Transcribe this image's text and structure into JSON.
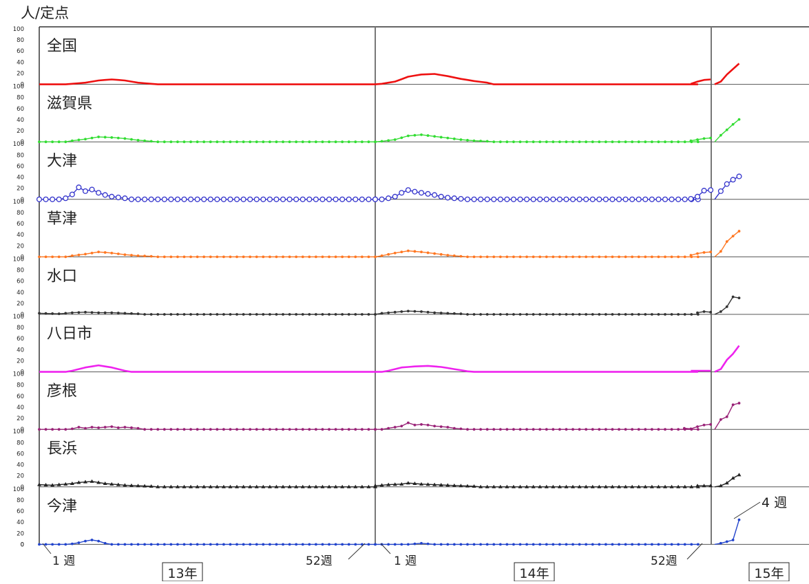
{
  "chart_data": {
    "type": "line",
    "ylabel": "人/定点",
    "y_tick_labels": [
      "100",
      "80",
      "60",
      "40",
      "20",
      "0"
    ],
    "ylim": [
      0,
      100
    ],
    "grid": false,
    "years": [
      "13年",
      "14年",
      "15年"
    ],
    "week_labels": {
      "y13_start": "1 週",
      "y13_end": "52週",
      "y14_start": "1 週",
      "y14_end": "52週"
    },
    "annotation": "4 週",
    "panels": [
      {
        "name": "全国",
        "color": "#ee1111",
        "marker": "none",
        "y13": [
          [
            6,
            1
          ],
          [
            8,
            3
          ],
          [
            10,
            7
          ],
          [
            12,
            9
          ],
          [
            14,
            7
          ],
          [
            16,
            3
          ],
          [
            18,
            1
          ]
        ],
        "y14": [
          [
            2,
            1
          ],
          [
            4,
            5
          ],
          [
            6,
            14
          ],
          [
            8,
            18
          ],
          [
            10,
            19
          ],
          [
            12,
            15
          ],
          [
            14,
            10
          ],
          [
            16,
            6
          ],
          [
            18,
            3
          ]
        ],
        "y14_tail": [
          [
            51,
            1
          ],
          [
            52,
            5
          ],
          [
            53,
            8
          ],
          [
            54,
            9
          ]
        ],
        "y15": [
          [
            1,
            5
          ],
          [
            2,
            18
          ],
          [
            3,
            28
          ],
          [
            4,
            38
          ]
        ]
      },
      {
        "name": "滋賀県",
        "color": "#33dd33",
        "marker": "dot",
        "y13": [
          [
            6,
            2
          ],
          [
            8,
            5
          ],
          [
            10,
            9
          ],
          [
            12,
            8
          ],
          [
            14,
            6
          ],
          [
            16,
            3
          ],
          [
            18,
            1
          ]
        ],
        "y14": [
          [
            2,
            1
          ],
          [
            4,
            4
          ],
          [
            6,
            11
          ],
          [
            8,
            13
          ],
          [
            10,
            10
          ],
          [
            12,
            7
          ],
          [
            14,
            4
          ],
          [
            16,
            2
          ],
          [
            18,
            1
          ]
        ],
        "y14_tail": [
          [
            51,
            2
          ],
          [
            52,
            4
          ],
          [
            53,
            6
          ],
          [
            54,
            7
          ]
        ],
        "y15": [
          [
            1,
            12
          ],
          [
            2,
            22
          ],
          [
            3,
            32
          ],
          [
            4,
            41
          ]
        ]
      },
      {
        "name": "大津",
        "color": "#3333cc",
        "marker": "circle",
        "y13": [
          [
            5,
            2
          ],
          [
            6,
            9
          ],
          [
            7,
            22
          ],
          [
            8,
            15
          ],
          [
            9,
            18
          ],
          [
            10,
            12
          ],
          [
            11,
            8
          ],
          [
            12,
            5
          ],
          [
            14,
            2
          ]
        ],
        "y14": [
          [
            3,
            2
          ],
          [
            4,
            5
          ],
          [
            5,
            12
          ],
          [
            6,
            17
          ],
          [
            7,
            14
          ],
          [
            8,
            12
          ],
          [
            9,
            10
          ],
          [
            10,
            8
          ],
          [
            11,
            5
          ],
          [
            12,
            3
          ],
          [
            14,
            1
          ]
        ],
        "y14_tail": [
          [
            51,
            1
          ],
          [
            52,
            5
          ],
          [
            53,
            16
          ],
          [
            54,
            17
          ]
        ],
        "y15": [
          [
            1,
            15
          ],
          [
            2,
            28
          ],
          [
            3,
            36
          ],
          [
            4,
            42
          ]
        ]
      },
      {
        "name": "草津",
        "color": "#ff7722",
        "marker": "dot",
        "y13": [
          [
            6,
            2
          ],
          [
            8,
            5
          ],
          [
            10,
            9
          ],
          [
            12,
            7
          ],
          [
            14,
            4
          ],
          [
            16,
            2
          ],
          [
            18,
            1
          ]
        ],
        "y14": [
          [
            2,
            2
          ],
          [
            4,
            7
          ],
          [
            6,
            11
          ],
          [
            8,
            9
          ],
          [
            10,
            6
          ],
          [
            12,
            3
          ],
          [
            14,
            1
          ]
        ],
        "y14_tail": [
          [
            51,
            3
          ],
          [
            52,
            6
          ],
          [
            53,
            8
          ],
          [
            54,
            9
          ]
        ],
        "y15": [
          [
            1,
            10
          ],
          [
            2,
            28
          ],
          [
            3,
            38
          ],
          [
            4,
            47
          ]
        ]
      },
      {
        "name": "水口",
        "color": "#333333",
        "marker": "dot",
        "y13": [
          [
            1,
            2
          ],
          [
            4,
            1
          ],
          [
            6,
            3
          ],
          [
            8,
            4
          ],
          [
            10,
            3
          ],
          [
            12,
            3
          ],
          [
            14,
            2
          ],
          [
            16,
            1
          ]
        ],
        "y14": [
          [
            2,
            2
          ],
          [
            4,
            4
          ],
          [
            6,
            6
          ],
          [
            8,
            5
          ],
          [
            10,
            3
          ],
          [
            12,
            2
          ],
          [
            14,
            1
          ]
        ],
        "y14_tail": [
          [
            52,
            3
          ],
          [
            53,
            5
          ],
          [
            54,
            4
          ]
        ],
        "y15": [
          [
            1,
            5
          ],
          [
            2,
            14
          ],
          [
            3,
            32
          ],
          [
            4,
            30
          ]
        ]
      },
      {
        "name": "八日市",
        "color": "#ee22ee",
        "marker": "none",
        "y13": [
          [
            6,
            2
          ],
          [
            8,
            8
          ],
          [
            10,
            12
          ],
          [
            12,
            8
          ],
          [
            14,
            2
          ],
          [
            15,
            0
          ]
        ],
        "y14": [
          [
            3,
            2
          ],
          [
            5,
            8
          ],
          [
            7,
            10
          ],
          [
            9,
            11
          ],
          [
            11,
            9
          ],
          [
            13,
            5
          ],
          [
            15,
            1
          ]
        ],
        "y14_tail": [
          [
            51,
            2
          ],
          [
            52,
            2
          ],
          [
            53,
            2
          ],
          [
            54,
            2
          ]
        ],
        "y15": [
          [
            1,
            5
          ],
          [
            2,
            22
          ],
          [
            3,
            33
          ],
          [
            4,
            48
          ]
        ]
      },
      {
        "name": "彦根",
        "color": "#992277",
        "marker": "dot",
        "y13": [
          [
            6,
            1
          ],
          [
            7,
            4
          ],
          [
            8,
            2
          ],
          [
            9,
            4
          ],
          [
            10,
            3
          ],
          [
            11,
            4
          ],
          [
            12,
            5
          ],
          [
            13,
            3
          ],
          [
            14,
            4
          ],
          [
            15,
            3
          ],
          [
            16,
            2
          ]
        ],
        "y14": [
          [
            3,
            2
          ],
          [
            5,
            6
          ],
          [
            6,
            12
          ],
          [
            7,
            8
          ],
          [
            8,
            9
          ],
          [
            9,
            8
          ],
          [
            10,
            6
          ],
          [
            11,
            5
          ],
          [
            12,
            4
          ],
          [
            13,
            2
          ],
          [
            14,
            1
          ]
        ],
        "y14_tail": [
          [
            50,
            2
          ],
          [
            51,
            1
          ],
          [
            52,
            5
          ],
          [
            53,
            8
          ],
          [
            54,
            9
          ]
        ],
        "y15": [
          [
            1,
            18
          ],
          [
            2,
            23
          ],
          [
            3,
            45
          ],
          [
            4,
            48
          ]
        ]
      },
      {
        "name": "長浜",
        "color": "#222222",
        "marker": "triangle",
        "y13": [
          [
            1,
            4
          ],
          [
            3,
            3
          ],
          [
            5,
            5
          ],
          [
            6,
            6
          ],
          [
            7,
            8
          ],
          [
            8,
            9
          ],
          [
            9,
            10
          ],
          [
            10,
            8
          ],
          [
            11,
            6
          ],
          [
            12,
            5
          ],
          [
            14,
            3
          ],
          [
            16,
            2
          ],
          [
            18,
            1
          ]
        ],
        "y14": [
          [
            1,
            2
          ],
          [
            3,
            4
          ],
          [
            5,
            5
          ],
          [
            6,
            7
          ],
          [
            7,
            6
          ],
          [
            8,
            5
          ],
          [
            10,
            4
          ],
          [
            12,
            3
          ],
          [
            14,
            2
          ],
          [
            16,
            1
          ]
        ],
        "y14_tail": [
          [
            52,
            2
          ],
          [
            53,
            2
          ],
          [
            54,
            2
          ]
        ],
        "y15": [
          [
            1,
            2
          ],
          [
            2,
            7
          ],
          [
            3,
            16
          ],
          [
            4,
            22
          ]
        ]
      },
      {
        "name": "今津",
        "color": "#2244cc",
        "marker": "dot",
        "y13": [
          [
            6,
            1
          ],
          [
            7,
            3
          ],
          [
            8,
            6
          ],
          [
            9,
            8
          ],
          [
            10,
            6
          ],
          [
            11,
            2
          ],
          [
            12,
            0
          ]
        ],
        "y14": [
          [
            7,
            1
          ],
          [
            8,
            2
          ],
          [
            9,
            1
          ],
          [
            10,
            0
          ]
        ],
        "y14_tail": [],
        "y15": [
          [
            1,
            2
          ],
          [
            2,
            5
          ],
          [
            3,
            8
          ],
          [
            4,
            45
          ]
        ]
      }
    ]
  }
}
